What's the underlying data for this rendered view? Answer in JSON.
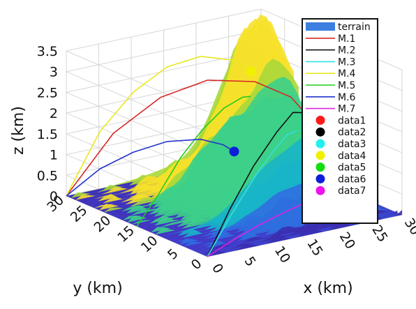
{
  "chart_data": {
    "type": "line",
    "subtype": "3d-trajectories-over-terrain-surface",
    "xlabel": "x (km)",
    "ylabel": "y (km)",
    "zlabel": "z (km)",
    "x_ticks": [
      "0",
      "5",
      "10",
      "15",
      "20",
      "25",
      "30"
    ],
    "y_ticks": [
      "0",
      "5",
      "10",
      "15",
      "20",
      "25",
      "30"
    ],
    "z_ticks": [
      "0",
      "0.5",
      "1",
      "1.5",
      "2",
      "2.5",
      "3",
      "3.5"
    ],
    "xlim": [
      0,
      30
    ],
    "ylim": [
      0,
      30
    ],
    "zlim": [
      0,
      3.5
    ],
    "grid": true,
    "legend_position": "top-right",
    "legend": {
      "terrain": {
        "name": "terrain",
        "color": "#3d7fe0"
      },
      "lines": [
        {
          "name": "M.1",
          "color": "#d62728"
        },
        {
          "name": "M.2",
          "color": "#111111"
        },
        {
          "name": "M.3",
          "color": "#33e0e0"
        },
        {
          "name": "M.4",
          "color": "#e8e820"
        },
        {
          "name": "M.5",
          "color": "#22cc22"
        },
        {
          "name": "M.6",
          "color": "#2233cc"
        },
        {
          "name": "M.7",
          "color": "#dd22dd"
        }
      ],
      "markers": [
        {
          "name": "data1",
          "color": "#ff1a1a"
        },
        {
          "name": "data2",
          "color": "#000000"
        },
        {
          "name": "data3",
          "color": "#22f0f0"
        },
        {
          "name": "data4",
          "color": "#f0f000"
        },
        {
          "name": "data5",
          "color": "#11dd11"
        },
        {
          "name": "data6",
          "color": "#0b1fd8"
        },
        {
          "name": "data7",
          "color": "#ee11ee"
        }
      ]
    },
    "terrain_colormap": [
      "#3b2fb0",
      "#2f6fe0",
      "#18b4c8",
      "#3ccf8a",
      "#a8d83a",
      "#f6e12a"
    ],
    "series": [
      {
        "name": "M.1",
        "color": "#d62728",
        "points": [
          [
            0,
            30,
            0
          ],
          [
            4,
            25.5,
            1.6
          ],
          [
            8,
            21,
            2.55
          ],
          [
            12,
            16.5,
            3.05
          ],
          [
            16,
            12,
            3.1
          ],
          [
            19,
            8.5,
            2.8
          ],
          [
            21,
            6,
            2.2
          ],
          [
            22.3,
            4.3,
            1.5
          ],
          [
            23,
            3.5,
            1.15
          ]
        ]
      },
      {
        "name": "M.2",
        "color": "#111111",
        "points": [
          [
            0,
            0,
            0
          ],
          [
            5,
            2,
            0.9
          ],
          [
            10,
            4,
            1.65
          ],
          [
            15,
            6,
            2.2
          ],
          [
            19,
            8,
            2.45
          ],
          [
            21.5,
            9.2,
            2.3
          ],
          [
            23,
            10.3,
            1.9
          ],
          [
            23.8,
            11.2,
            1.6
          ]
        ]
      },
      {
        "name": "M.3",
        "color": "#33e0e0",
        "points": [
          [
            0,
            0,
            0
          ],
          [
            6,
            3,
            0.7
          ],
          [
            12,
            6.5,
            1.2
          ],
          [
            17,
            9.5,
            1.5
          ],
          [
            21,
            12,
            1.65
          ],
          [
            24,
            14,
            1.55
          ]
        ]
      },
      {
        "name": "M.4",
        "color": "#e8e820",
        "points": [
          [
            0,
            30,
            0
          ],
          [
            3,
            27,
            1.6
          ],
          [
            6,
            24,
            2.6
          ],
          [
            9,
            21,
            3.25
          ],
          [
            12,
            18,
            3.55
          ],
          [
            15,
            15,
            3.5
          ],
          [
            16.5,
            13.5,
            3.25
          ]
        ]
      },
      {
        "name": "M.5",
        "color": "#22cc22",
        "points": [
          [
            0,
            15,
            0
          ],
          [
            3,
            14.5,
            0.7
          ],
          [
            6,
            14,
            1.5
          ],
          [
            9,
            13.5,
            2.1
          ],
          [
            12,
            13,
            2.55
          ],
          [
            14.5,
            12.5,
            2.75
          ],
          [
            15.5,
            12.2,
            2.75
          ]
        ]
      },
      {
        "name": "M.6",
        "color": "#2233cc",
        "points": [
          [
            0,
            30,
            0
          ],
          [
            3,
            27,
            0.7
          ],
          [
            6,
            24,
            1.15
          ],
          [
            9,
            21,
            1.45
          ],
          [
            12,
            18,
            1.55
          ],
          [
            14,
            16,
            1.45
          ],
          [
            15,
            15,
            1.3
          ]
        ]
      },
      {
        "name": "M.7",
        "color": "#dd22dd",
        "points": [
          [
            0,
            0,
            0
          ],
          [
            6,
            2.5,
            0.1
          ],
          [
            12,
            5,
            0.15
          ],
          [
            18,
            7.5,
            0.15
          ],
          [
            24,
            10,
            0.12
          ]
        ]
      }
    ],
    "markers": [
      {
        "name": "data1",
        "color": "#ff1a1a",
        "point": [
          23,
          3.5,
          1.15
        ]
      },
      {
        "name": "data2",
        "color": "#000000",
        "point": [
          23.8,
          11.2,
          1.6
        ]
      },
      {
        "name": "data4",
        "color": "#f0f000",
        "point": [
          16.5,
          13.5,
          3.25
        ]
      },
      {
        "name": "data6",
        "color": "#0b1fd8",
        "point": [
          15,
          15,
          1.3
        ]
      }
    ]
  }
}
